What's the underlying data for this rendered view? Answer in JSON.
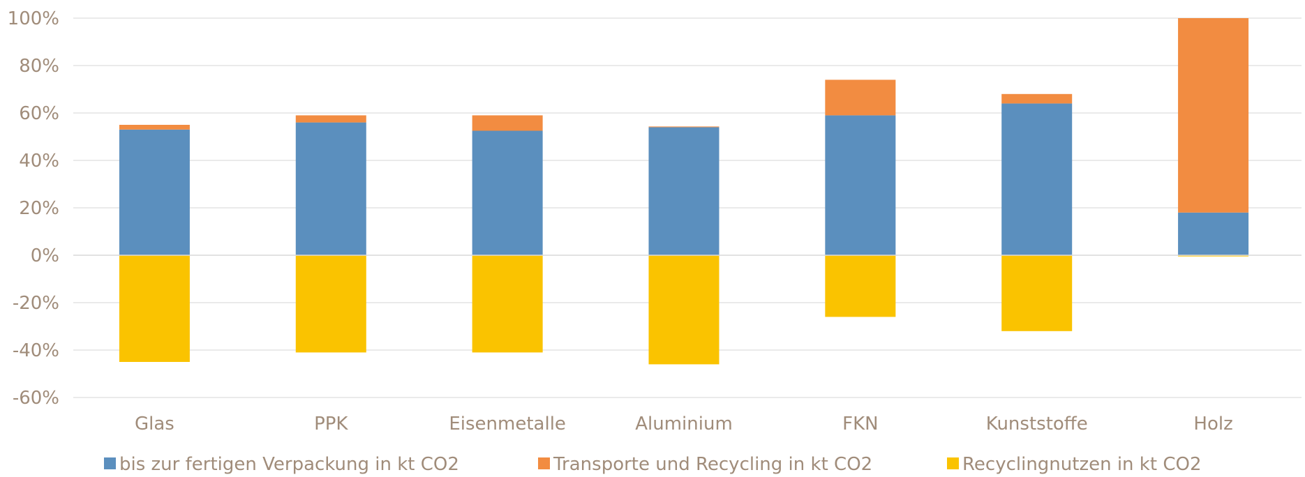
{
  "chart_data": {
    "type": "bar",
    "stacked": true,
    "title": "",
    "xlabel": "",
    "ylabel": "",
    "ylim": [
      -60,
      100
    ],
    "y_ticks": [
      -60,
      -40,
      -20,
      0,
      20,
      40,
      60,
      80,
      100
    ],
    "y_tick_format": "percent",
    "grid": true,
    "legend_position": "bottom",
    "categories": [
      "Glas",
      "PPK",
      "Eisenmetalle",
      "Aluminium",
      "FKN",
      "Kunststoffe",
      "Holz"
    ],
    "series": [
      {
        "name": "bis zur fertigen Verpackung in kt CO2",
        "color": "#5b8fbe",
        "values": [
          53,
          56,
          52.5,
          54,
          59,
          64,
          18
        ]
      },
      {
        "name": "Transporte und Recycling in kt CO2",
        "color": "#f28c41",
        "values": [
          2,
          3,
          6.5,
          0.3,
          15,
          4,
          82
        ]
      },
      {
        "name": "Recyclingnutzen in kt CO2",
        "color": "#fac300",
        "values": [
          -45,
          -41,
          -41,
          -46,
          -26,
          -32,
          -0.5
        ]
      }
    ]
  }
}
